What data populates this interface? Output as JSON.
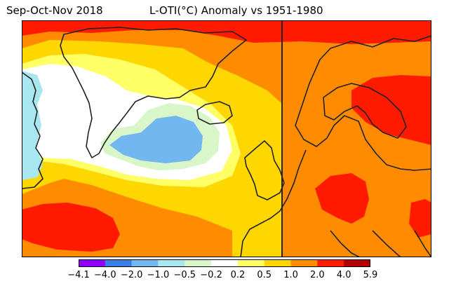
{
  "header": {
    "period": "Sep-Oct-Nov 2018",
    "title": "L-OTI(°C) Anomaly vs 1951-1980"
  },
  "colorbar": {
    "colors": [
      "#8f00ff",
      "#3b7fe8",
      "#72b7f0",
      "#a8e7f0",
      "#d8f6c8",
      "#ffffff",
      "#ffff66",
      "#ffd700",
      "#ff8c00",
      "#ff1a00",
      "#b30000"
    ],
    "tick_labels": [
      "−4.1",
      "−4.0",
      "−2.0",
      "−1.0",
      "−0.5",
      "−0.2",
      "0.2",
      "0.5",
      "1.0",
      "2.0",
      "4.0",
      "5.9"
    ]
  }
}
